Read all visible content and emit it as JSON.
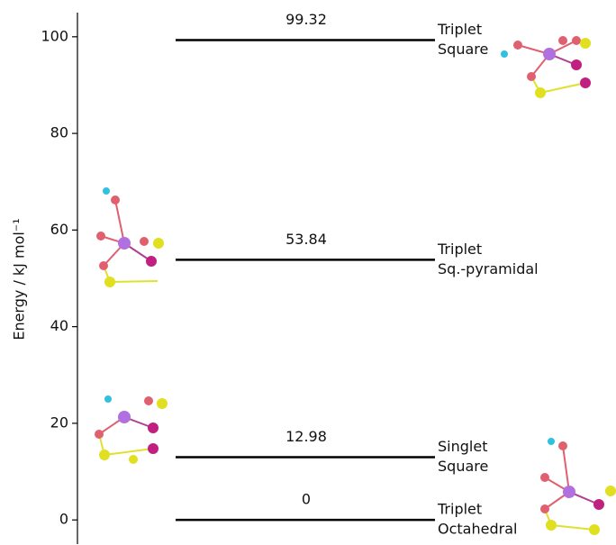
{
  "chart_data": {
    "type": "energy_levels",
    "ylabel": "Energy / kJ mol⁻¹",
    "ylim": [
      -5,
      105
    ],
    "yticks": [
      0,
      20,
      40,
      60,
      80,
      100
    ],
    "color": "#000000",
    "levels": [
      {
        "spin": "Triplet",
        "geometry": "Square",
        "value": 99.32
      },
      {
        "spin": "Triplet",
        "geometry": "Sq.-pyramidal",
        "value": 53.84
      },
      {
        "spin": "Singlet",
        "geometry": "Square",
        "value": 12.98
      },
      {
        "spin": "Triplet",
        "geometry": "Octahedral",
        "value": 0
      }
    ]
  }
}
